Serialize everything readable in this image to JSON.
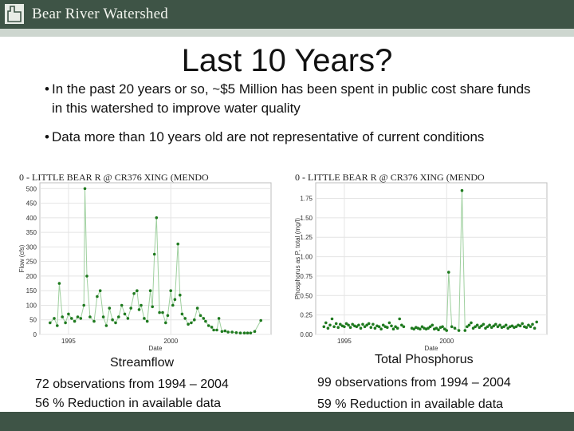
{
  "header": {
    "brand": "Bear River Watershed",
    "colors": {
      "bar": "#3e5446",
      "stripe": "#cdd6cf"
    },
    "logo_icon": "state-outline-icon"
  },
  "slide": {
    "title": "Last 10 Years?",
    "bullets": [
      "In the past 20 years or so, ~$5 Million has been spent in public cost share funds in this watershed to improve water quality",
      "Data more than 10 years old are not representative of current conditions"
    ],
    "bullet_glyph": "•"
  },
  "captions": {
    "left_title": "Streamflow",
    "left_obs": "72 observations from 1994 – 2004",
    "left_reduction": "56 % Reduction in available data",
    "right_title": "Total Phosphorus",
    "right_obs": "99 observations from 1994 – 2004",
    "right_reduction": "59 % Reduction in available data"
  },
  "chart_data": [
    {
      "type": "line",
      "title": "0 - LITTLE BEAR R @ CR376 XING (MENDO",
      "xlabel": "Date",
      "ylabel": "Flow (cfs)",
      "x_ticks": [
        "1995",
        "2000"
      ],
      "x_tick_values": [
        1995,
        2000
      ],
      "xlim": [
        1993.6,
        2004.9
      ],
      "ylim": [
        0,
        520
      ],
      "y_ticks": [
        "0",
        "50",
        "100",
        "150",
        "200",
        "250",
        "300",
        "350",
        "400",
        "450",
        "500"
      ],
      "y_tick_values": [
        0,
        50,
        100,
        150,
        200,
        250,
        300,
        350,
        400,
        450,
        500
      ],
      "grid": true,
      "line_color": "#9fd09f",
      "point_color": "#1f7a1f",
      "points": [
        [
          1994.1,
          40
        ],
        [
          1994.3,
          55
        ],
        [
          1994.45,
          30
        ],
        [
          1994.55,
          175
        ],
        [
          1994.7,
          60
        ],
        [
          1994.85,
          40
        ],
        [
          1995.0,
          70
        ],
        [
          1995.15,
          55
        ],
        [
          1995.3,
          45
        ],
        [
          1995.45,
          60
        ],
        [
          1995.6,
          55
        ],
        [
          1995.75,
          100
        ],
        [
          1995.8,
          500
        ],
        [
          1995.9,
          200
        ],
        [
          1996.05,
          60
        ],
        [
          1996.25,
          45
        ],
        [
          1996.4,
          130
        ],
        [
          1996.55,
          150
        ],
        [
          1996.7,
          60
        ],
        [
          1996.85,
          30
        ],
        [
          1997.0,
          90
        ],
        [
          1997.15,
          50
        ],
        [
          1997.3,
          40
        ],
        [
          1997.45,
          60
        ],
        [
          1997.6,
          100
        ],
        [
          1997.75,
          70
        ],
        [
          1997.9,
          55
        ],
        [
          1998.05,
          90
        ],
        [
          1998.2,
          140
        ],
        [
          1998.35,
          150
        ],
        [
          1998.45,
          85
        ],
        [
          1998.55,
          100
        ],
        [
          1998.7,
          55
        ],
        [
          1998.85,
          45
        ],
        [
          1999.0,
          150
        ],
        [
          1999.1,
          95
        ],
        [
          1999.2,
          275
        ],
        [
          1999.3,
          400
        ],
        [
          1999.45,
          75
        ],
        [
          1999.6,
          75
        ],
        [
          1999.75,
          40
        ],
        [
          1999.85,
          65
        ],
        [
          2000.0,
          150
        ],
        [
          2000.1,
          100
        ],
        [
          2000.2,
          120
        ],
        [
          2000.35,
          310
        ],
        [
          2000.45,
          135
        ],
        [
          2000.55,
          70
        ],
        [
          2000.7,
          55
        ],
        [
          2000.85,
          35
        ],
        [
          2001.0,
          40
        ],
        [
          2001.15,
          50
        ],
        [
          2001.3,
          90
        ],
        [
          2001.45,
          65
        ],
        [
          2001.6,
          55
        ],
        [
          2001.7,
          45
        ],
        [
          2001.85,
          30
        ],
        [
          2002.0,
          25
        ],
        [
          2002.1,
          15
        ],
        [
          2002.25,
          15
        ],
        [
          2002.35,
          55
        ],
        [
          2002.5,
          10
        ],
        [
          2002.65,
          12
        ],
        [
          2002.8,
          8
        ],
        [
          2003.0,
          8
        ],
        [
          2003.2,
          6
        ],
        [
          2003.4,
          5
        ],
        [
          2003.6,
          5
        ],
        [
          2003.75,
          5
        ],
        [
          2003.9,
          5
        ],
        [
          2004.1,
          10
        ],
        [
          2004.4,
          48
        ]
      ]
    },
    {
      "type": "scatter",
      "title": "0 - LITTLE BEAR R @ CR376 XING (MENDO",
      "xlabel": "Date",
      "ylabel": "Phosphorus as P, total (mg/l)",
      "x_ticks": [
        "1995",
        "2000"
      ],
      "x_tick_values": [
        1995,
        2000
      ],
      "xlim": [
        1993.6,
        2004.9
      ],
      "ylim": [
        0,
        1.95
      ],
      "y_ticks": [
        "0.00",
        "0.25",
        "0.50",
        "0.75",
        "1.00",
        "1.25",
        "1.50",
        "1.75"
      ],
      "y_tick_values": [
        0,
        0.25,
        0.5,
        0.75,
        1.0,
        1.25,
        1.5,
        1.75
      ],
      "grid": true,
      "line_color": "#9fd09f",
      "point_color": "#1f7a1f",
      "spike": [
        [
          2000.0,
          0.05
        ],
        [
          2000.1,
          0.8
        ],
        [
          2000.25,
          0.1
        ],
        [
          2000.6,
          0.05
        ],
        [
          2000.75,
          1.85
        ],
        [
          2000.9,
          0.05
        ]
      ],
      "points": [
        [
          1994.0,
          0.1
        ],
        [
          1994.1,
          0.15
        ],
        [
          1994.2,
          0.08
        ],
        [
          1994.3,
          0.12
        ],
        [
          1994.4,
          0.2
        ],
        [
          1994.5,
          0.1
        ],
        [
          1994.6,
          0.14
        ],
        [
          1994.7,
          0.09
        ],
        [
          1994.8,
          0.13
        ],
        [
          1994.9,
          0.11
        ],
        [
          1995.0,
          0.1
        ],
        [
          1995.1,
          0.14
        ],
        [
          1995.2,
          0.12
        ],
        [
          1995.3,
          0.09
        ],
        [
          1995.4,
          0.13
        ],
        [
          1995.5,
          0.11
        ],
        [
          1995.6,
          0.1
        ],
        [
          1995.7,
          0.12
        ],
        [
          1995.8,
          0.08
        ],
        [
          1995.9,
          0.13
        ],
        [
          1996.0,
          0.1
        ],
        [
          1996.1,
          0.12
        ],
        [
          1996.2,
          0.14
        ],
        [
          1996.3,
          0.09
        ],
        [
          1996.4,
          0.13
        ],
        [
          1996.5,
          0.08
        ],
        [
          1996.6,
          0.11
        ],
        [
          1996.7,
          0.1
        ],
        [
          1996.8,
          0.07
        ],
        [
          1996.9,
          0.12
        ],
        [
          1997.0,
          0.1
        ],
        [
          1997.1,
          0.09
        ],
        [
          1997.2,
          0.15
        ],
        [
          1997.3,
          0.11
        ],
        [
          1997.4,
          0.07
        ],
        [
          1997.5,
          0.1
        ],
        [
          1997.6,
          0.08
        ],
        [
          1997.7,
          0.2
        ],
        [
          1997.8,
          0.12
        ],
        [
          1997.9,
          0.1
        ],
        [
          1998.3,
          0.08
        ],
        [
          1998.4,
          0.07
        ],
        [
          1998.5,
          0.09
        ],
        [
          1998.6,
          0.08
        ],
        [
          1998.7,
          0.07
        ],
        [
          1998.8,
          0.1
        ],
        [
          1998.9,
          0.08
        ],
        [
          1999.0,
          0.07
        ],
        [
          1999.1,
          0.08
        ],
        [
          1999.2,
          0.1
        ],
        [
          1999.3,
          0.12
        ],
        [
          1999.4,
          0.07
        ],
        [
          1999.5,
          0.08
        ],
        [
          1999.6,
          0.06
        ],
        [
          1999.7,
          0.09
        ],
        [
          1999.8,
          0.1
        ],
        [
          1999.9,
          0.07
        ],
        [
          2000.0,
          0.05
        ],
        [
          2000.1,
          0.8
        ],
        [
          2000.25,
          0.1
        ],
        [
          2000.4,
          0.08
        ],
        [
          2000.6,
          0.05
        ],
        [
          2000.75,
          1.85
        ],
        [
          2000.9,
          0.05
        ],
        [
          2001.0,
          0.1
        ],
        [
          2001.1,
          0.12
        ],
        [
          2001.2,
          0.15
        ],
        [
          2001.3,
          0.08
        ],
        [
          2001.4,
          0.1
        ],
        [
          2001.5,
          0.12
        ],
        [
          2001.6,
          0.09
        ],
        [
          2001.7,
          0.11
        ],
        [
          2001.8,
          0.13
        ],
        [
          2001.9,
          0.08
        ],
        [
          2002.0,
          0.1
        ],
        [
          2002.1,
          0.12
        ],
        [
          2002.2,
          0.09
        ],
        [
          2002.3,
          0.11
        ],
        [
          2002.4,
          0.13
        ],
        [
          2002.5,
          0.1
        ],
        [
          2002.6,
          0.12
        ],
        [
          2002.7,
          0.09
        ],
        [
          2002.8,
          0.1
        ],
        [
          2002.9,
          0.12
        ],
        [
          2003.0,
          0.08
        ],
        [
          2003.1,
          0.1
        ],
        [
          2003.2,
          0.11
        ],
        [
          2003.3,
          0.09
        ],
        [
          2003.4,
          0.1
        ],
        [
          2003.5,
          0.12
        ],
        [
          2003.6,
          0.11
        ],
        [
          2003.7,
          0.14
        ],
        [
          2003.8,
          0.1
        ],
        [
          2003.9,
          0.09
        ],
        [
          2004.0,
          0.12
        ],
        [
          2004.1,
          0.1
        ],
        [
          2004.2,
          0.13
        ],
        [
          2004.3,
          0.08
        ],
        [
          2004.4,
          0.16
        ]
      ]
    }
  ]
}
